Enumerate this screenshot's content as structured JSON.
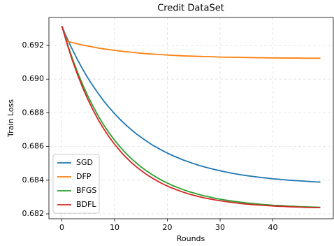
{
  "chart_data": {
    "type": "line",
    "title": "Credit DataSet",
    "x_label": "Rounds",
    "y_label": "Train Loss",
    "x": [
      0,
      1,
      2,
      3,
      4,
      5,
      6,
      7,
      8,
      9,
      10,
      11,
      12,
      13,
      14,
      15,
      16,
      17,
      18,
      19,
      20,
      21,
      22,
      23,
      24,
      25,
      26,
      27,
      28,
      29,
      30,
      31,
      32,
      33,
      34,
      35,
      36,
      37,
      38,
      39,
      40,
      41,
      42,
      43,
      44,
      45,
      46,
      47,
      48,
      49
    ],
    "series": [
      {
        "name": "SGD",
        "color": "#1f77b4",
        "values": [
          0.69315,
          0.69242,
          0.69175,
          0.69113,
          0.69056,
          0.69003,
          0.68955,
          0.6891,
          0.68868,
          0.6883,
          0.68795,
          0.68762,
          0.68732,
          0.68704,
          0.68678,
          0.68655,
          0.68633,
          0.68612,
          0.68594,
          0.68577,
          0.68561,
          0.68546,
          0.68533,
          0.6852,
          0.68509,
          0.68498,
          0.68488,
          0.68479,
          0.68471,
          0.68463,
          0.68456,
          0.68449,
          0.68443,
          0.68437,
          0.68432,
          0.68427,
          0.68423,
          0.68419,
          0.68415,
          0.68412,
          0.68408,
          0.68406,
          0.68403,
          0.684,
          0.68398,
          0.68396,
          0.68394,
          0.68392,
          0.6839,
          0.68389
        ]
      },
      {
        "name": "DFP",
        "color": "#ff7f0e",
        "values": [
          0.69315,
          0.69225,
          0.69217,
          0.69209,
          0.69202,
          0.69196,
          0.6919,
          0.69184,
          0.69179,
          0.69175,
          0.69171,
          0.69167,
          0.69163,
          0.6916,
          0.69157,
          0.69154,
          0.69151,
          0.69149,
          0.69147,
          0.69145,
          0.69143,
          0.69141,
          0.6914,
          0.69138,
          0.69137,
          0.69136,
          0.69135,
          0.69134,
          0.69133,
          0.69132,
          0.69131,
          0.6913,
          0.6913,
          0.69129,
          0.69129,
          0.69128,
          0.69128,
          0.69127,
          0.69127,
          0.69126,
          0.69126,
          0.69126,
          0.69125,
          0.69125,
          0.69125,
          0.69125,
          0.69124,
          0.69124,
          0.69124,
          0.69124
        ]
      },
      {
        "name": "BFGS",
        "color": "#2ca02c",
        "values": [
          0.69315,
          0.69214,
          0.69122,
          0.69039,
          0.68963,
          0.68895,
          0.68833,
          0.68776,
          0.68725,
          0.68679,
          0.68637,
          0.68599,
          0.68565,
          0.68533,
          0.68505,
          0.68479,
          0.68456,
          0.68435,
          0.68416,
          0.68398,
          0.68383,
          0.68368,
          0.68356,
          0.68344,
          0.68333,
          0.68324,
          0.68315,
          0.68307,
          0.683,
          0.68293,
          0.68287,
          0.68282,
          0.68277,
          0.68273,
          0.68269,
          0.68265,
          0.68262,
          0.68259,
          0.68256,
          0.68254,
          0.68251,
          0.6825,
          0.68248,
          0.68246,
          0.68245,
          0.68243,
          0.68242,
          0.68241,
          0.6824,
          0.68239
        ]
      },
      {
        "name": "BDFL",
        "color": "#d62728",
        "values": [
          0.69315,
          0.69208,
          0.69111,
          0.69024,
          0.68945,
          0.68875,
          0.68811,
          0.68753,
          0.68702,
          0.68655,
          0.68613,
          0.68575,
          0.68541,
          0.6851,
          0.68482,
          0.68458,
          0.68435,
          0.68415,
          0.68397,
          0.6838,
          0.68365,
          0.68352,
          0.6834,
          0.68329,
          0.68319,
          0.6831,
          0.68302,
          0.68295,
          0.68289,
          0.68283,
          0.68278,
          0.68273,
          0.68269,
          0.68265,
          0.68261,
          0.68258,
          0.68255,
          0.68253,
          0.68251,
          0.68249,
          0.68247,
          0.68245,
          0.68244,
          0.68242,
          0.68241,
          0.6824,
          0.68239,
          0.68238,
          0.68237,
          0.68237
        ]
      }
    ],
    "xlim": [
      -2.45,
      51.45
    ],
    "xticks": [
      0,
      10,
      20,
      30,
      40
    ],
    "ylim": [
      0.68171,
      0.69366
    ],
    "yticks": [
      0.682,
      0.684,
      0.686,
      0.688,
      {
        "value": 0.69,
        "label": "0.690"
      },
      0.692
    ],
    "grid": true,
    "legend": "lower left"
  }
}
